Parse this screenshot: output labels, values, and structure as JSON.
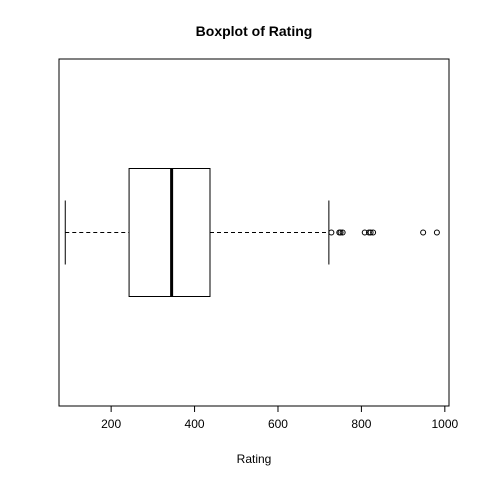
{
  "chart_data": {
    "type": "boxplot",
    "orientation": "horizontal",
    "title": "Boxplot of Rating",
    "xlabel": "Rating",
    "ylabel": "",
    "xlim": [
      75,
      1010
    ],
    "x_ticks": [
      200,
      400,
      600,
      800,
      1000
    ],
    "grid": false,
    "box": {
      "whisker_low": 90,
      "q1": 243,
      "median": 345,
      "q3": 437,
      "whisker_high": 722
    },
    "outliers": [
      728,
      747,
      750,
      755,
      808,
      818,
      822,
      828,
      948,
      981
    ],
    "colors": {
      "foreground": "#000000",
      "background": "#ffffff"
    }
  }
}
